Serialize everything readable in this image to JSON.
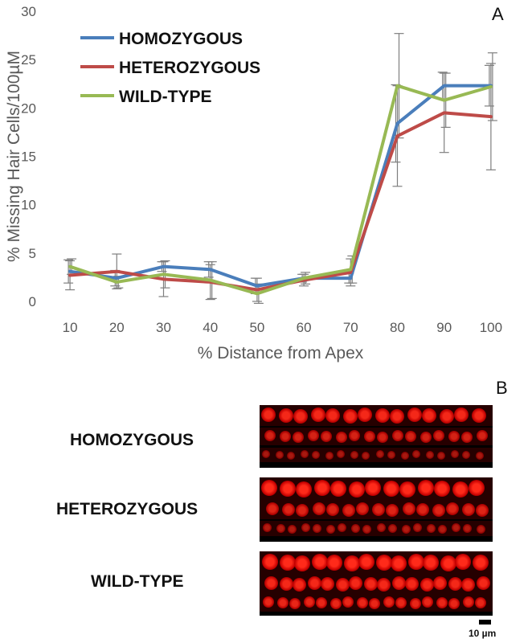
{
  "panels": {
    "a": "A",
    "b": "B"
  },
  "chart_data": {
    "type": "line",
    "xlabel": "% Distance from Apex",
    "ylabel": "% Missing Hair Cells/100µM",
    "x": [
      10,
      20,
      30,
      40,
      50,
      60,
      70,
      80,
      90,
      100
    ],
    "ylim": [
      0,
      30
    ],
    "yticks": [
      0,
      5,
      10,
      15,
      20,
      25,
      30
    ],
    "grid": false,
    "legend_position": "top-left",
    "series": [
      {
        "name": "HOMOZYGOUS",
        "color": "#4a7ebb",
        "values": [
          3.1,
          2.4,
          3.6,
          3.3,
          1.6,
          2.4,
          2.4,
          18.4,
          22.3,
          22.3
        ],
        "error": [
          1.2,
          0.8,
          0.5,
          0.8,
          0.8,
          0.4,
          0.5,
          4.0,
          1.4,
          2.1
        ]
      },
      {
        "name": "HETEROZYGOUS",
        "color": "#be4b48",
        "values": [
          2.7,
          3.1,
          2.3,
          2.0,
          1.2,
          2.2,
          3.0,
          17.1,
          19.5,
          19.1
        ],
        "error": [
          1.5,
          1.8,
          1.8,
          1.8,
          1.2,
          0.6,
          1.4,
          5.2,
          4.1,
          5.5
        ]
      },
      {
        "name": "WILD-TYPE",
        "color": "#98b954",
        "values": [
          3.6,
          2.0,
          2.8,
          2.2,
          0.8,
          2.4,
          3.3,
          22.3,
          20.8,
          22.2
        ],
        "error": [
          0.8,
          0.6,
          1.4,
          1.9,
          1.0,
          0.6,
          1.4,
          5.4,
          2.8,
          3.5
        ]
      }
    ]
  },
  "images": {
    "labels": [
      "HOMOZYGOUS",
      "HETEROZYGOUS",
      "WILD-TYPE"
    ],
    "scale_bar": "10 µm"
  }
}
